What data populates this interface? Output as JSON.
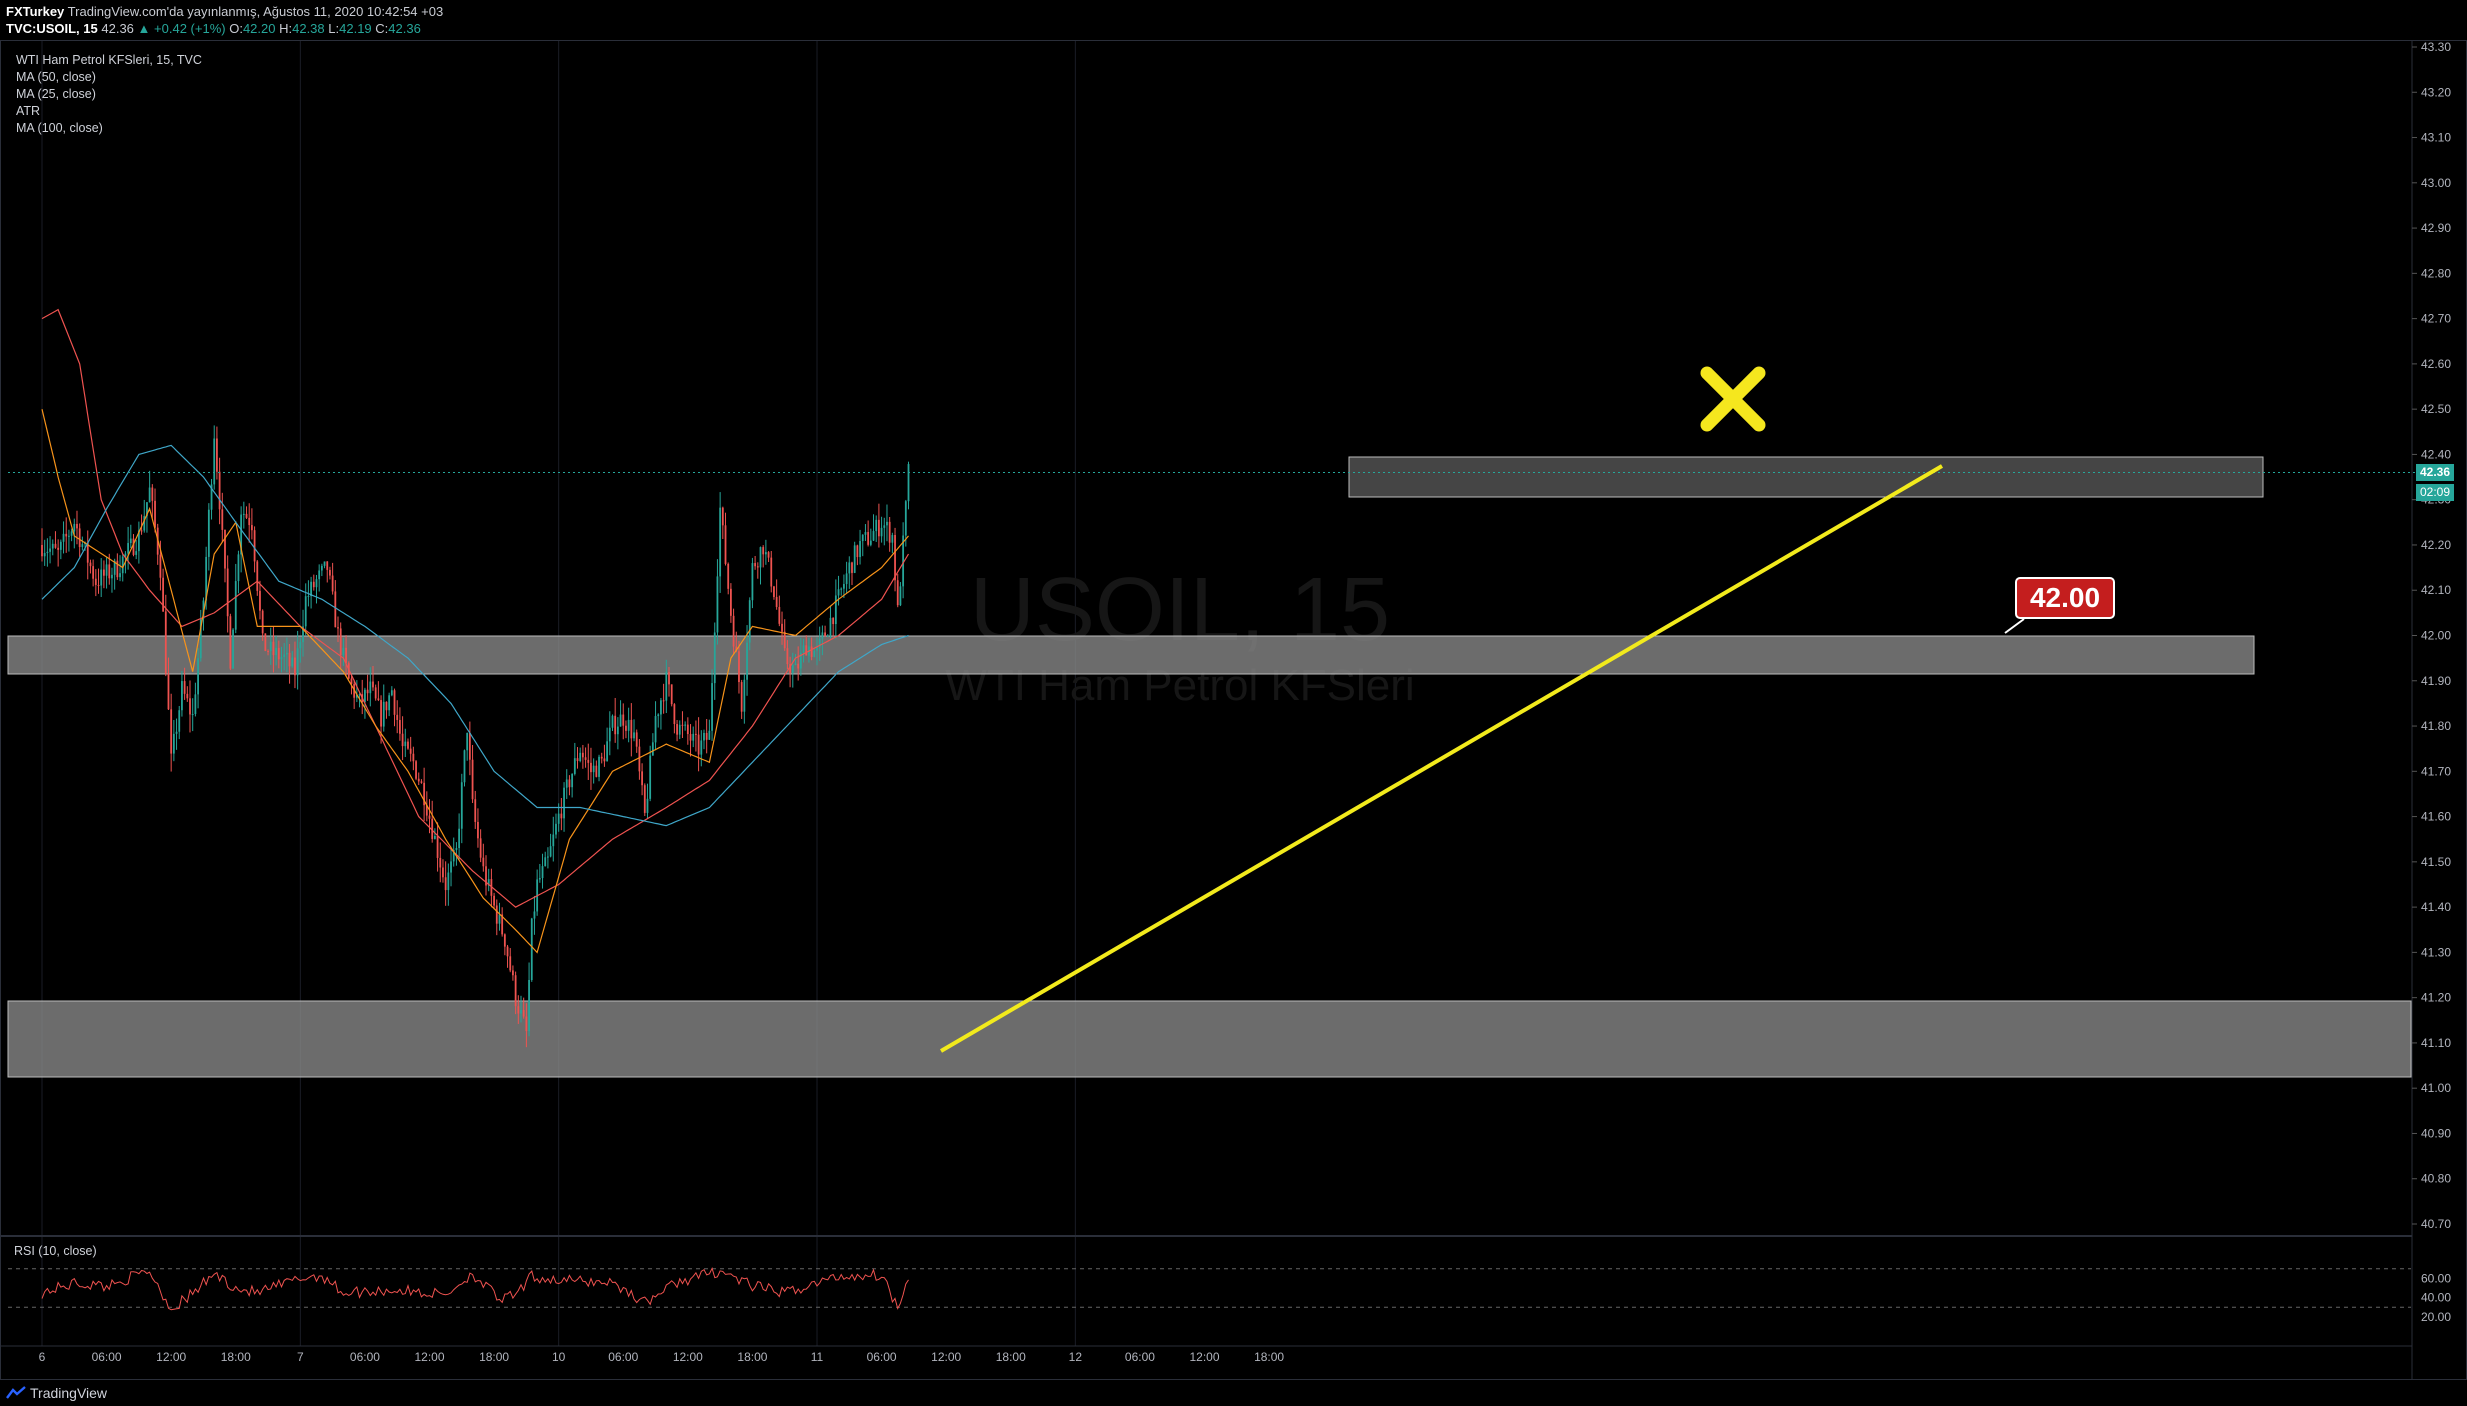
{
  "header": {
    "publisher": "FXTurkey",
    "published_text": "TradingView.com'da yayınlanmış, Ağustos 11, 2020 10:42:54 +03",
    "symbol": "TVC:USOIL, 15",
    "change": "+0.42 (+1%)",
    "last": "42.36",
    "ohlc": {
      "O": "42.20",
      "H": "42.38",
      "L": "42.19",
      "C": "42.36"
    }
  },
  "legend": {
    "title": "WTI Ham Petrol KFSleri, 15, TVC",
    "indicators": [
      "MA (50, close)",
      "MA (25, close)",
      "ATR",
      "MA (100, close)"
    ]
  },
  "watermark": {
    "line1": "USOIL, 15",
    "line2": "WTI Ham Petrol KFSleri"
  },
  "rsi": {
    "label": "RSI (10, close)",
    "ticks": [
      "60.00",
      "40.00",
      "20.00"
    ],
    "upper": 70,
    "lower": 30
  },
  "price_badges": {
    "last": "42.36",
    "timer": "02:09"
  },
  "annotations": {
    "level_label": "42.00",
    "cross_symbol": "✖"
  },
  "footer": {
    "brand": "TradingView"
  },
  "colors": {
    "background": "#000000",
    "up": "#26a69a",
    "down": "#ef5350",
    "trendline": "#f2ea1c",
    "zone": "#8a8a8a",
    "ma50": "#ef5350",
    "ma25": "#f7931a",
    "ma100": "#3fa7c9",
    "label": "#c41e1e"
  },
  "chart_data": {
    "type": "candlestick",
    "ylim": [
      40.7,
      43.3
    ],
    "y_ticks": [
      "43.30",
      "43.20",
      "43.10",
      "43.00",
      "42.90",
      "42.80",
      "42.70",
      "42.60",
      "42.50",
      "42.40",
      "42.30",
      "42.20",
      "42.10",
      "42.00",
      "41.90",
      "41.80",
      "41.70",
      "41.60",
      "41.50",
      "41.40",
      "41.30",
      "41.20",
      "41.10",
      "41.00",
      "40.90",
      "40.80",
      "40.70"
    ],
    "x_ticks": [
      "6",
      "06:00",
      "12:00",
      "18:00",
      "7",
      "06:00",
      "12:00",
      "18:00",
      "10",
      "06:00",
      "12:00",
      "18:00",
      "11",
      "06:00",
      "12:00",
      "18:00",
      "12",
      "06:00",
      "12:00",
      "18:00"
    ],
    "x_tick_index": [
      0,
      24,
      48,
      72,
      96,
      120,
      144,
      168,
      192,
      216,
      240,
      264,
      288,
      312,
      336,
      360,
      384,
      408,
      432,
      456
    ],
    "close_anchors": [
      [
        0,
        42.2
      ],
      [
        6,
        42.18
      ],
      [
        12,
        42.25
      ],
      [
        20,
        42.12
      ],
      [
        28,
        42.15
      ],
      [
        36,
        42.22
      ],
      [
        40,
        42.32
      ],
      [
        44,
        42.15
      ],
      [
        48,
        41.72
      ],
      [
        52,
        41.88
      ],
      [
        56,
        41.82
      ],
      [
        60,
        42.08
      ],
      [
        64,
        42.45
      ],
      [
        66,
        42.3
      ],
      [
        70,
        41.95
      ],
      [
        74,
        42.28
      ],
      [
        78,
        42.25
      ],
      [
        82,
        41.98
      ],
      [
        86,
        41.96
      ],
      [
        90,
        41.95
      ],
      [
        94,
        41.92
      ],
      [
        98,
        42.08
      ],
      [
        102,
        42.12
      ],
      [
        106,
        42.15
      ],
      [
        110,
        42.0
      ],
      [
        114,
        41.9
      ],
      [
        118,
        41.85
      ],
      [
        122,
        41.88
      ],
      [
        126,
        41.82
      ],
      [
        130,
        41.88
      ],
      [
        134,
        41.75
      ],
      [
        138,
        41.72
      ],
      [
        142,
        41.65
      ],
      [
        146,
        41.55
      ],
      [
        150,
        41.45
      ],
      [
        154,
        41.52
      ],
      [
        158,
        41.8
      ],
      [
        160,
        41.62
      ],
      [
        164,
        41.48
      ],
      [
        168,
        41.4
      ],
      [
        172,
        41.33
      ],
      [
        176,
        41.2
      ],
      [
        180,
        41.12
      ],
      [
        182,
        41.35
      ],
      [
        184,
        41.45
      ],
      [
        188,
        41.5
      ],
      [
        192,
        41.6
      ],
      [
        196,
        41.68
      ],
      [
        200,
        41.75
      ],
      [
        204,
        41.7
      ],
      [
        208,
        41.72
      ],
      [
        212,
        41.8
      ],
      [
        216,
        41.82
      ],
      [
        220,
        41.78
      ],
      [
        224,
        41.6
      ],
      [
        228,
        41.82
      ],
      [
        232,
        41.9
      ],
      [
        236,
        41.8
      ],
      [
        240,
        41.78
      ],
      [
        244,
        41.75
      ],
      [
        248,
        41.78
      ],
      [
        252,
        42.28
      ],
      [
        256,
        42.05
      ],
      [
        260,
        41.85
      ],
      [
        264,
        42.15
      ],
      [
        268,
        42.2
      ],
      [
        272,
        42.1
      ],
      [
        276,
        41.95
      ],
      [
        280,
        41.92
      ],
      [
        284,
        41.98
      ],
      [
        288,
        41.96
      ],
      [
        292,
        42.02
      ],
      [
        296,
        42.08
      ],
      [
        300,
        42.15
      ],
      [
        304,
        42.2
      ],
      [
        308,
        42.22
      ],
      [
        312,
        42.25
      ],
      [
        316,
        42.22
      ],
      [
        318,
        42.05
      ],
      [
        320,
        42.2
      ],
      [
        322,
        42.36
      ]
    ],
    "rsi_anchors": [
      [
        0,
        45
      ],
      [
        12,
        55
      ],
      [
        24,
        52
      ],
      [
        40,
        68
      ],
      [
        48,
        28
      ],
      [
        56,
        44
      ],
      [
        64,
        65
      ],
      [
        72,
        50
      ],
      [
        80,
        45
      ],
      [
        96,
        60
      ],
      [
        104,
        63
      ],
      [
        112,
        45
      ],
      [
        130,
        48
      ],
      [
        150,
        43
      ],
      [
        160,
        65
      ],
      [
        170,
        38
      ],
      [
        176,
        42
      ],
      [
        182,
        62
      ],
      [
        192,
        58
      ],
      [
        212,
        56
      ],
      [
        224,
        35
      ],
      [
        236,
        56
      ],
      [
        252,
        68
      ],
      [
        264,
        52
      ],
      [
        276,
        45
      ],
      [
        296,
        62
      ],
      [
        312,
        64
      ],
      [
        318,
        30
      ],
      [
        322,
        64
      ]
    ],
    "ma_anchors": {
      "ma50": [
        [
          0,
          42.7
        ],
        [
          6,
          42.72
        ],
        [
          14,
          42.6
        ],
        [
          22,
          42.3
        ],
        [
          30,
          42.18
        ],
        [
          40,
          42.1
        ],
        [
          52,
          42.02
        ],
        [
          64,
          42.05
        ],
        [
          80,
          42.12
        ],
        [
          96,
          42.02
        ],
        [
          112,
          41.95
        ],
        [
          128,
          41.75
        ],
        [
          140,
          41.6
        ],
        [
          160,
          41.48
        ],
        [
          176,
          41.4
        ],
        [
          192,
          41.45
        ],
        [
          212,
          41.55
        ],
        [
          232,
          41.62
        ],
        [
          248,
          41.68
        ],
        [
          264,
          41.8
        ],
        [
          280,
          41.95
        ],
        [
          296,
          42.0
        ],
        [
          312,
          42.08
        ],
        [
          322,
          42.18
        ]
      ],
      "ma25": [
        [
          0,
          42.5
        ],
        [
          6,
          42.35
        ],
        [
          12,
          42.22
        ],
        [
          30,
          42.15
        ],
        [
          40,
          42.28
        ],
        [
          48,
          42.1
        ],
        [
          56,
          41.92
        ],
        [
          64,
          42.18
        ],
        [
          72,
          42.25
        ],
        [
          80,
          42.02
        ],
        [
          96,
          42.02
        ],
        [
          112,
          41.92
        ],
        [
          124,
          41.8
        ],
        [
          136,
          41.7
        ],
        [
          150,
          41.55
        ],
        [
          164,
          41.42
        ],
        [
          176,
          41.35
        ],
        [
          184,
          41.3
        ],
        [
          196,
          41.55
        ],
        [
          212,
          41.7
        ],
        [
          232,
          41.76
        ],
        [
          248,
          41.72
        ],
        [
          256,
          41.95
        ],
        [
          264,
          42.02
        ],
        [
          280,
          42.0
        ],
        [
          296,
          42.08
        ],
        [
          312,
          42.15
        ],
        [
          322,
          42.22
        ]
      ],
      "ma100": [
        [
          0,
          42.08
        ],
        [
          12,
          42.15
        ],
        [
          24,
          42.28
        ],
        [
          36,
          42.4
        ],
        [
          48,
          42.42
        ],
        [
          60,
          42.35
        ],
        [
          72,
          42.25
        ],
        [
          88,
          42.12
        ],
        [
          104,
          42.08
        ],
        [
          120,
          42.02
        ],
        [
          136,
          41.95
        ],
        [
          152,
          41.85
        ],
        [
          168,
          41.7
        ],
        [
          184,
          41.62
        ],
        [
          200,
          41.62
        ],
        [
          216,
          41.6
        ],
        [
          232,
          41.58
        ],
        [
          248,
          41.62
        ],
        [
          264,
          41.72
        ],
        [
          280,
          41.82
        ],
        [
          296,
          41.92
        ],
        [
          312,
          41.98
        ],
        [
          322,
          42.0
        ]
      ]
    }
  }
}
